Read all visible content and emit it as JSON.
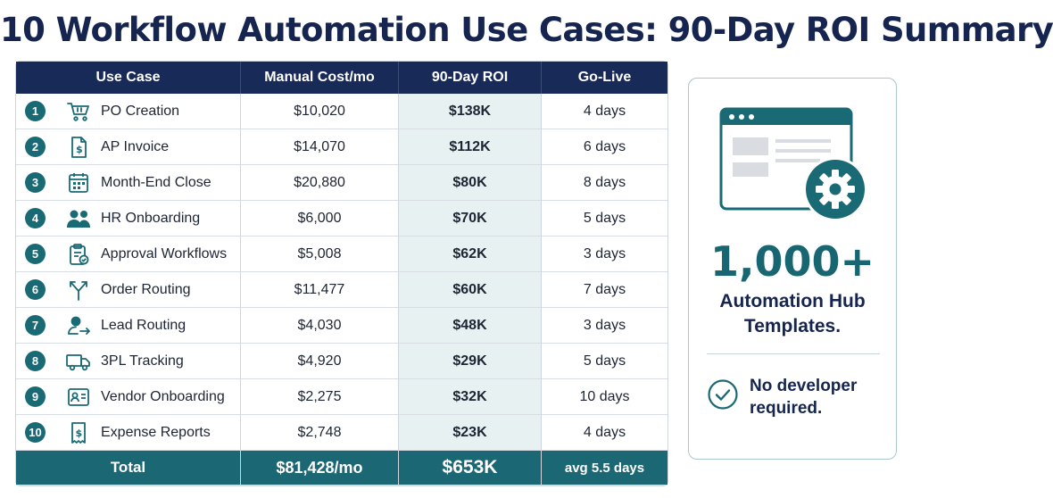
{
  "title": "10 Workflow Automation Use Cases: 90-Day ROI Summary",
  "table": {
    "headers": [
      "Use Case",
      "Manual Cost/mo",
      "90-Day ROI",
      "Go-Live"
    ],
    "rows": [
      {
        "num": "1",
        "icon": "shopping-cart-icon",
        "use_case": "PO Creation",
        "cost": "$10,020",
        "roi": "$138K",
        "golive": "4 days"
      },
      {
        "num": "2",
        "icon": "dollar-document-icon",
        "use_case": "AP Invoice",
        "cost": "$14,070",
        "roi": "$112K",
        "golive": "6 days"
      },
      {
        "num": "3",
        "icon": "calendar-icon",
        "use_case": "Month-End Close",
        "cost": "$20,880",
        "roi": "$80K",
        "golive": "8 days"
      },
      {
        "num": "4",
        "icon": "people-icon",
        "use_case": "HR Onboarding",
        "cost": "$6,000",
        "roi": "$70K",
        "golive": "5 days"
      },
      {
        "num": "5",
        "icon": "clipboard-check-icon",
        "use_case": "Approval Workflows",
        "cost": "$5,008",
        "roi": "$62K",
        "golive": "3 days"
      },
      {
        "num": "6",
        "icon": "split-arrows-icon",
        "use_case": "Order Routing",
        "cost": "$11,477",
        "roi": "$60K",
        "golive": "7 days"
      },
      {
        "num": "7",
        "icon": "person-arrow-icon",
        "use_case": "Lead Routing",
        "cost": "$4,030",
        "roi": "$48K",
        "golive": "3 days"
      },
      {
        "num": "8",
        "icon": "truck-icon",
        "use_case": "3PL Tracking",
        "cost": "$4,920",
        "roi": "$29K",
        "golive": "5 days"
      },
      {
        "num": "9",
        "icon": "id-card-icon",
        "use_case": "Vendor Onboarding",
        "cost": "$2,275",
        "roi": "$32K",
        "golive": "10 days"
      },
      {
        "num": "10",
        "icon": "receipt-icon",
        "use_case": "Expense Reports",
        "cost": "$2,748",
        "roi": "$23K",
        "golive": "4 days"
      }
    ],
    "total": {
      "label": "Total",
      "cost": "$81,428/mo",
      "roi": "$653K",
      "golive": "avg 5.5 days"
    }
  },
  "side": {
    "icon": "browser-gear-icon",
    "big_number": "1,000+",
    "hub_line1": "Automation Hub",
    "hub_line2": "Templates.",
    "nodev_icon": "check-circle-icon",
    "nodev_line1": "No developer",
    "nodev_line2": "required."
  },
  "colors": {
    "navy": "#16254f",
    "header_bg": "#182a58",
    "teal": "#1a6a75",
    "roi_bg": "#e7f1f2"
  }
}
